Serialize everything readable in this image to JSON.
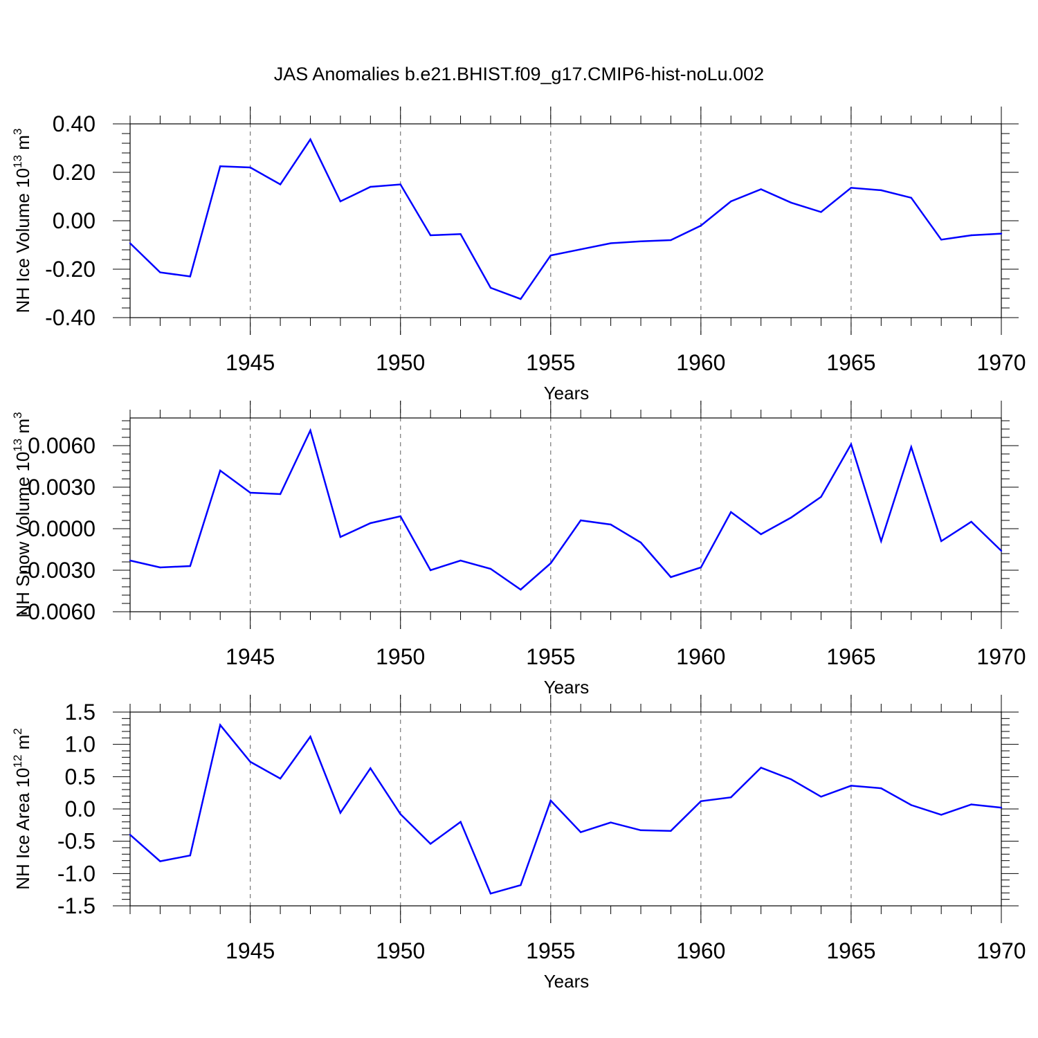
{
  "chart_data": {
    "title": "JAS Anomalies b.e21.BHIST.f09_g17.CMIP6-hist-noLu.002",
    "type": "line",
    "line_color": "#0000ff",
    "panels": [
      {
        "type": "line",
        "ylabel": {
          "text": "NH Ice Volume 10",
          "exp": "13",
          "unit": "m",
          "unit_exp": "3"
        },
        "xlabel": "Years",
        "xlim": [
          1941,
          1970
        ],
        "xticks": [
          "1945",
          "1950",
          "1955",
          "1960",
          "1965",
          "1970"
        ],
        "ylim": [
          -0.4,
          0.4
        ],
        "yticks": [
          "-0.40",
          "-0.20",
          "0.00",
          "0.20",
          "0.40"
        ],
        "x": [
          1941,
          1942,
          1943,
          1944,
          1945,
          1946,
          1947,
          1948,
          1949,
          1950,
          1951,
          1952,
          1953,
          1954,
          1955,
          1956,
          1957,
          1958,
          1959,
          1960,
          1961,
          1962,
          1963,
          1964,
          1965,
          1966,
          1967,
          1968,
          1969,
          1970
        ],
        "values": [
          -0.093,
          -0.213,
          -0.23,
          0.225,
          0.22,
          0.15,
          0.336,
          0.08,
          0.14,
          0.15,
          -0.06,
          -0.055,
          -0.277,
          -0.323,
          -0.143,
          -0.118,
          -0.093,
          -0.085,
          -0.08,
          -0.02,
          0.08,
          0.13,
          0.075,
          0.036,
          0.136,
          0.126,
          0.095,
          -0.078,
          -0.06,
          -0.053
        ]
      },
      {
        "type": "line",
        "ylabel": {
          "text": "NH Snow Volume 10",
          "exp": "13",
          "unit": "m",
          "unit_exp": "3"
        },
        "xlabel": "Years",
        "xlim": [
          1941,
          1970
        ],
        "xticks": [
          "1945",
          "1950",
          "1955",
          "1960",
          "1965",
          "1970"
        ],
        "ylim": [
          -0.006,
          0.008
        ],
        "yticks": [
          "-0.0060",
          "-0.0030",
          "0.0000",
          "0.0030",
          "0.0060"
        ],
        "x": [
          1941,
          1942,
          1943,
          1944,
          1945,
          1946,
          1947,
          1948,
          1949,
          1950,
          1951,
          1952,
          1953,
          1954,
          1955,
          1956,
          1957,
          1958,
          1959,
          1960,
          1961,
          1962,
          1963,
          1964,
          1965,
          1966,
          1967,
          1968,
          1969,
          1970
        ],
        "values": [
          -0.0023,
          -0.0028,
          -0.0027,
          0.0042,
          0.0026,
          0.0025,
          0.0071,
          -0.0006,
          0.0004,
          0.0009,
          -0.003,
          -0.0023,
          -0.0029,
          -0.0044,
          -0.0025,
          0.0006,
          0.0003,
          -0.001,
          -0.0035,
          -0.0028,
          0.0012,
          -0.0004,
          0.0008,
          0.0023,
          0.0061,
          -0.0009,
          0.0059,
          -0.0009,
          0.0005,
          -0.0016
        ]
      },
      {
        "type": "line",
        "ylabel": {
          "text": "NH Ice Area 10",
          "exp": "12",
          "unit": "m",
          "unit_exp": "2"
        },
        "xlabel": "Years",
        "xlim": [
          1941,
          1970
        ],
        "xticks": [
          "1945",
          "1950",
          "1955",
          "1960",
          "1965",
          "1970"
        ],
        "ylim": [
          -1.5,
          1.5
        ],
        "yticks": [
          "-1.5",
          "-1.0",
          "-0.5",
          "0.0",
          "0.5",
          "1.0",
          "1.5"
        ],
        "x": [
          1941,
          1942,
          1943,
          1944,
          1945,
          1946,
          1947,
          1948,
          1949,
          1950,
          1951,
          1952,
          1953,
          1954,
          1955,
          1956,
          1957,
          1958,
          1959,
          1960,
          1961,
          1962,
          1963,
          1964,
          1965,
          1966,
          1967,
          1968,
          1969,
          1970
        ],
        "values": [
          -0.4,
          -0.81,
          -0.72,
          1.3,
          0.73,
          0.47,
          1.12,
          -0.06,
          0.63,
          -0.08,
          -0.54,
          -0.2,
          -1.31,
          -1.18,
          0.13,
          -0.36,
          -0.21,
          -0.33,
          -0.34,
          0.12,
          0.18,
          0.64,
          0.46,
          0.19,
          0.36,
          0.32,
          0.06,
          -0.09,
          0.07,
          0.02
        ]
      }
    ]
  }
}
